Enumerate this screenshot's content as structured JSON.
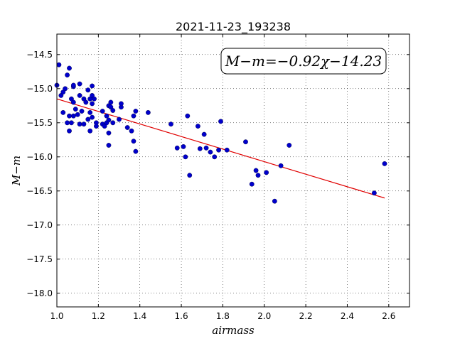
{
  "chart_data": {
    "type": "scatter",
    "title": "2021-11-23_193238",
    "xlabel": "airmass",
    "ylabel": "M−m",
    "xlim": [
      1.0,
      2.7
    ],
    "ylim": [
      -18.2,
      -14.2
    ],
    "y_inverted": true,
    "grid": true,
    "x_ticks": [
      1.0,
      1.2,
      1.4,
      1.6,
      1.8,
      2.0,
      2.2,
      2.4,
      2.6
    ],
    "x_tick_labels": [
      "1.0",
      "1.2",
      "1.4",
      "1.6",
      "1.8",
      "2.0",
      "2.2",
      "2.4",
      "2.6"
    ],
    "y_ticks": [
      -14.5,
      -15.0,
      -15.5,
      -16.0,
      -16.5,
      -17.0,
      -17.5,
      -18.0
    ],
    "y_tick_labels": [
      "−14.5",
      "−15.0",
      "−15.5",
      "−16.0",
      "−16.5",
      "−17.0",
      "−17.5",
      "−18.0"
    ],
    "annotation": "M−m=−0.92χ−14.23",
    "fit": {
      "slope": -0.92,
      "intercept": -14.23,
      "x_range": [
        1.0,
        2.58
      ],
      "color": "#e00000"
    },
    "point_color": "#0000cc",
    "points": [
      [
        1.0,
        -14.95
      ],
      [
        1.01,
        -14.65
      ],
      [
        1.02,
        -15.1
      ],
      [
        1.03,
        -15.05
      ],
      [
        1.03,
        -15.35
      ],
      [
        1.04,
        -15.0
      ],
      [
        1.05,
        -14.8
      ],
      [
        1.05,
        -15.5
      ],
      [
        1.06,
        -14.7
      ],
      [
        1.06,
        -15.4
      ],
      [
        1.06,
        -15.62
      ],
      [
        1.07,
        -15.15
      ],
      [
        1.07,
        -15.5
      ],
      [
        1.08,
        -14.97
      ],
      [
        1.08,
        -14.95
      ],
      [
        1.08,
        -15.2
      ],
      [
        1.08,
        -15.4
      ],
      [
        1.09,
        -15.3
      ],
      [
        1.1,
        -15.38
      ],
      [
        1.11,
        -14.93
      ],
      [
        1.11,
        -15.1
      ],
      [
        1.11,
        -15.52
      ],
      [
        1.12,
        -15.33
      ],
      [
        1.13,
        -15.15
      ],
      [
        1.13,
        -15.52
      ],
      [
        1.14,
        -15.2
      ],
      [
        1.15,
        -15.02
      ],
      [
        1.15,
        -15.45
      ],
      [
        1.16,
        -15.15
      ],
      [
        1.16,
        -15.35
      ],
      [
        1.16,
        -15.62
      ],
      [
        1.17,
        -14.96
      ],
      [
        1.17,
        -15.1
      ],
      [
        1.17,
        -15.22
      ],
      [
        1.17,
        -15.42
      ],
      [
        1.18,
        -15.15
      ],
      [
        1.19,
        -15.5
      ],
      [
        1.19,
        -15.55
      ],
      [
        1.22,
        -15.33
      ],
      [
        1.22,
        -15.52
      ],
      [
        1.23,
        -15.55
      ],
      [
        1.24,
        -15.5
      ],
      [
        1.24,
        -15.4
      ],
      [
        1.25,
        -15.46
      ],
      [
        1.25,
        -15.25
      ],
      [
        1.25,
        -15.65
      ],
      [
        1.25,
        -15.83
      ],
      [
        1.26,
        -15.2
      ],
      [
        1.26,
        -15.27
      ],
      [
        1.27,
        -15.32
      ],
      [
        1.27,
        -15.5
      ],
      [
        1.3,
        -15.45
      ],
      [
        1.31,
        -15.27
      ],
      [
        1.31,
        -15.22
      ],
      [
        1.34,
        -15.57
      ],
      [
        1.36,
        -15.62
      ],
      [
        1.37,
        -15.77
      ],
      [
        1.37,
        -15.4
      ],
      [
        1.38,
        -15.33
      ],
      [
        1.38,
        -15.92
      ],
      [
        1.44,
        -15.35
      ],
      [
        1.55,
        -15.52
      ],
      [
        1.58,
        -15.87
      ],
      [
        1.61,
        -15.85
      ],
      [
        1.62,
        -16.0
      ],
      [
        1.63,
        -15.4
      ],
      [
        1.64,
        -16.27
      ],
      [
        1.68,
        -15.55
      ],
      [
        1.69,
        -15.88
      ],
      [
        1.71,
        -15.67
      ],
      [
        1.72,
        -15.87
      ],
      [
        1.74,
        -15.93
      ],
      [
        1.76,
        -16.0
      ],
      [
        1.78,
        -15.9
      ],
      [
        1.79,
        -15.48
      ],
      [
        1.82,
        -15.9
      ],
      [
        1.91,
        -15.78
      ],
      [
        1.94,
        -16.4
      ],
      [
        1.96,
        -16.2
      ],
      [
        1.97,
        -16.27
      ],
      [
        2.01,
        -16.23
      ],
      [
        2.05,
        -16.65
      ],
      [
        2.08,
        -16.13
      ],
      [
        2.12,
        -15.83
      ],
      [
        2.53,
        -16.53
      ],
      [
        2.58,
        -16.1
      ]
    ]
  }
}
